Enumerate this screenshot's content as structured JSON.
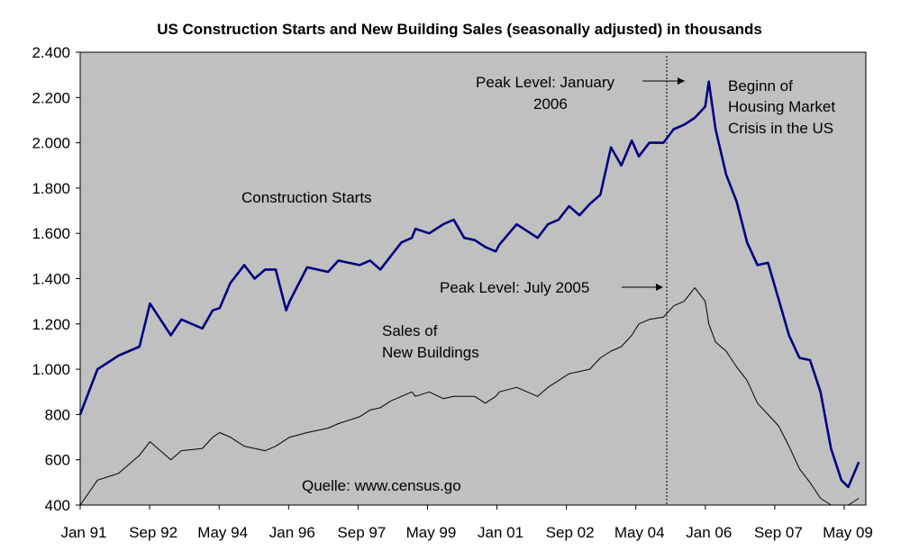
{
  "chart_data": {
    "type": "line",
    "title": "US Construction Starts and New Building Sales (seasonally adjusted) in thousands",
    "xlabel": "",
    "ylabel": "",
    "ylim": [
      400,
      2400
    ],
    "yticks": [
      "400",
      "600",
      "800",
      "1.000",
      "1.200",
      "1.400",
      "1.600",
      "1.800",
      "2.000",
      "2.200",
      "2.400"
    ],
    "ytick_values": [
      400,
      600,
      800,
      1000,
      1200,
      1400,
      1600,
      1800,
      2000,
      2200,
      2400
    ],
    "xticks": [
      "Jan 91",
      "Sep 92",
      "May 94",
      "Jan 96",
      "Sep 97",
      "May 99",
      "Jan 01",
      "Sep 02",
      "May 04",
      "Jan 06",
      "Sep 07",
      "May 09"
    ],
    "grid": false,
    "plot_background": "#c0c0c0",
    "series": [
      {
        "name": "Construction Starts",
        "color": "#000080",
        "x": [
          "1991-01",
          "1991-06",
          "1991-12",
          "1992-06",
          "1992-09",
          "1993-03",
          "1993-06",
          "1993-12",
          "1994-03",
          "1994-05",
          "1994-08",
          "1994-12",
          "1995-03",
          "1995-06",
          "1995-09",
          "1995-12",
          "1996-01",
          "1996-06",
          "1996-12",
          "1997-03",
          "1997-09",
          "1997-12",
          "1998-03",
          "1998-06",
          "1998-09",
          "1998-12",
          "1999-01",
          "1999-05",
          "1999-09",
          "1999-12",
          "2000-03",
          "2000-06",
          "2000-09",
          "2000-12",
          "2001-01",
          "2001-06",
          "2001-12",
          "2002-03",
          "2002-06",
          "2002-09",
          "2002-12",
          "2003-03",
          "2003-06",
          "2003-09",
          "2003-12",
          "2004-03",
          "2004-05",
          "2004-08",
          "2004-12",
          "2005-03",
          "2005-06",
          "2005-09",
          "2005-12",
          "2006-01",
          "2006-03",
          "2006-06",
          "2006-09",
          "2006-12",
          "2007-03",
          "2007-06",
          "2007-09",
          "2007-12",
          "2008-03",
          "2008-06",
          "2008-09",
          "2008-12",
          "2009-03",
          "2009-05",
          "2009-08"
        ],
        "values": [
          800,
          1000,
          1060,
          1100,
          1290,
          1150,
          1220,
          1180,
          1260,
          1270,
          1380,
          1460,
          1400,
          1440,
          1440,
          1260,
          1300,
          1450,
          1430,
          1480,
          1460,
          1480,
          1440,
          1500,
          1560,
          1580,
          1620,
          1600,
          1640,
          1660,
          1580,
          1570,
          1540,
          1520,
          1550,
          1640,
          1580,
          1640,
          1660,
          1720,
          1680,
          1730,
          1770,
          1980,
          1900,
          2010,
          1940,
          2000,
          2000,
          2060,
          2080,
          2110,
          2160,
          2270,
          2060,
          1860,
          1740,
          1560,
          1460,
          1470,
          1310,
          1150,
          1050,
          1040,
          900,
          650,
          510,
          480,
          590
        ]
      },
      {
        "name": "Sales of New Buildings",
        "color": "#000000",
        "x": [
          "1991-01",
          "1991-06",
          "1991-12",
          "1992-06",
          "1992-09",
          "1993-03",
          "1993-06",
          "1993-12",
          "1994-03",
          "1994-05",
          "1994-08",
          "1994-12",
          "1995-03",
          "1995-06",
          "1995-09",
          "1995-12",
          "1996-01",
          "1996-06",
          "1996-12",
          "1997-03",
          "1997-09",
          "1997-12",
          "1998-03",
          "1998-06",
          "1998-09",
          "1998-12",
          "1999-01",
          "1999-05",
          "1999-09",
          "1999-12",
          "2000-03",
          "2000-06",
          "2000-09",
          "2000-12",
          "2001-01",
          "2001-06",
          "2001-12",
          "2002-03",
          "2002-06",
          "2002-09",
          "2002-12",
          "2003-03",
          "2003-06",
          "2003-09",
          "2003-12",
          "2004-03",
          "2004-05",
          "2004-08",
          "2004-12",
          "2005-03",
          "2005-06",
          "2005-09",
          "2005-12",
          "2006-01",
          "2006-03",
          "2006-06",
          "2006-09",
          "2006-12",
          "2007-03",
          "2007-06",
          "2007-09",
          "2007-12",
          "2008-03",
          "2008-06",
          "2008-09",
          "2008-12",
          "2009-03",
          "2009-05",
          "2009-08"
        ],
        "values": [
          400,
          510,
          540,
          620,
          680,
          600,
          640,
          650,
          700,
          720,
          700,
          660,
          650,
          640,
          660,
          690,
          700,
          720,
          740,
          760,
          790,
          820,
          830,
          860,
          880,
          900,
          880,
          900,
          870,
          880,
          880,
          880,
          850,
          880,
          900,
          920,
          880,
          920,
          950,
          980,
          990,
          1000,
          1050,
          1080,
          1100,
          1150,
          1200,
          1220,
          1230,
          1280,
          1300,
          1360,
          1300,
          1200,
          1120,
          1080,
          1010,
          950,
          850,
          800,
          750,
          660,
          560,
          500,
          430,
          400,
          380,
          360,
          430
        ]
      }
    ],
    "annotations": [
      {
        "lines": [
          "Peak Level: January",
          "2006"
        ]
      },
      {
        "lines": [
          "Beginn of",
          "Housing Market",
          "Crisis in the US"
        ]
      },
      {
        "lines": [
          "Construction Starts"
        ]
      },
      {
        "lines": [
          "Peak Level: July 2005"
        ]
      },
      {
        "lines": [
          "Sales of",
          "New Buildings"
        ]
      },
      {
        "lines": [
          "Quelle: www.census.go"
        ]
      }
    ]
  }
}
